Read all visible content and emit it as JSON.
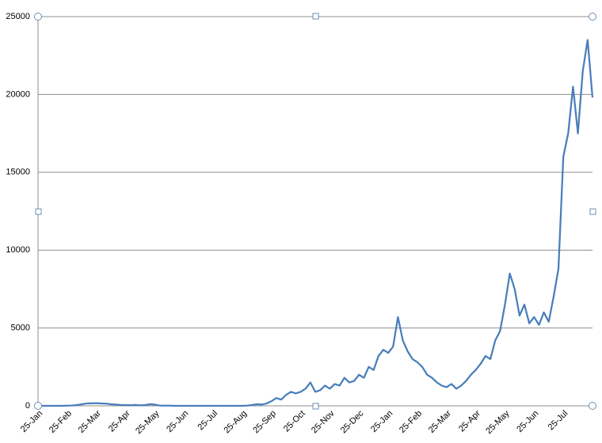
{
  "chart_data": {
    "type": "line",
    "categories": [
      "25-Jan",
      null,
      null,
      null,
      null,
      null,
      "25-Feb",
      null,
      null,
      null,
      null,
      null,
      "25-Mar",
      null,
      null,
      null,
      null,
      null,
      "25-Apr",
      null,
      null,
      null,
      null,
      null,
      "25-May",
      null,
      null,
      null,
      null,
      null,
      "25-Jun",
      null,
      null,
      null,
      null,
      null,
      "25-Jul",
      null,
      null,
      null,
      null,
      null,
      "25-Aug",
      null,
      null,
      null,
      null,
      null,
      "25-Sep",
      null,
      null,
      null,
      null,
      null,
      "25-Oct",
      null,
      null,
      null,
      null,
      null,
      "25-Nov",
      null,
      null,
      null,
      null,
      null,
      "25-Dec",
      null,
      null,
      null,
      null,
      null,
      "25-Jan",
      null,
      null,
      null,
      null,
      null,
      "25-Feb",
      null,
      null,
      null,
      null,
      null,
      "25-Mar",
      null,
      null,
      null,
      null,
      null,
      "25-Apr",
      null,
      null,
      null,
      null,
      null,
      "25-May",
      null,
      null,
      null,
      null,
      null,
      "25-Jun",
      null,
      null,
      null,
      null,
      null,
      "25-Jul",
      null,
      null,
      null,
      null,
      null,
      null
    ],
    "values": [
      0,
      0,
      0,
      0,
      0,
      0,
      10,
      20,
      50,
      100,
      150,
      160,
      170,
      150,
      140,
      100,
      80,
      60,
      50,
      40,
      60,
      30,
      50,
      100,
      80,
      20,
      10,
      10,
      0,
      0,
      0,
      0,
      0,
      0,
      0,
      0,
      0,
      0,
      0,
      0,
      0,
      0,
      0,
      10,
      50,
      100,
      80,
      150,
      300,
      500,
      400,
      700,
      900,
      800,
      900,
      1100,
      1500,
      900,
      1000,
      1300,
      1100,
      1400,
      1300,
      1800,
      1500,
      1600,
      2000,
      1800,
      2500,
      2300,
      3200,
      3600,
      3400,
      3800,
      5700,
      4200,
      3500,
      3000,
      2800,
      2500,
      2000,
      1800,
      1500,
      1300,
      1200,
      1400,
      1100,
      1300,
      1600,
      2000,
      2300,
      2700,
      3200,
      3000,
      4200,
      4800,
      6500,
      8500,
      7500,
      5800,
      6500,
      5300,
      5700,
      5200,
      6000,
      5400,
      7000,
      8800,
      16000,
      17500,
      20500,
      17500,
      21500,
      23500,
      19800
    ],
    "color": "#4a7ebb",
    "ylim": [
      0,
      25000
    ],
    "yticks": [
      0,
      5000,
      10000,
      15000,
      20000,
      25000
    ],
    "grid": true
  }
}
